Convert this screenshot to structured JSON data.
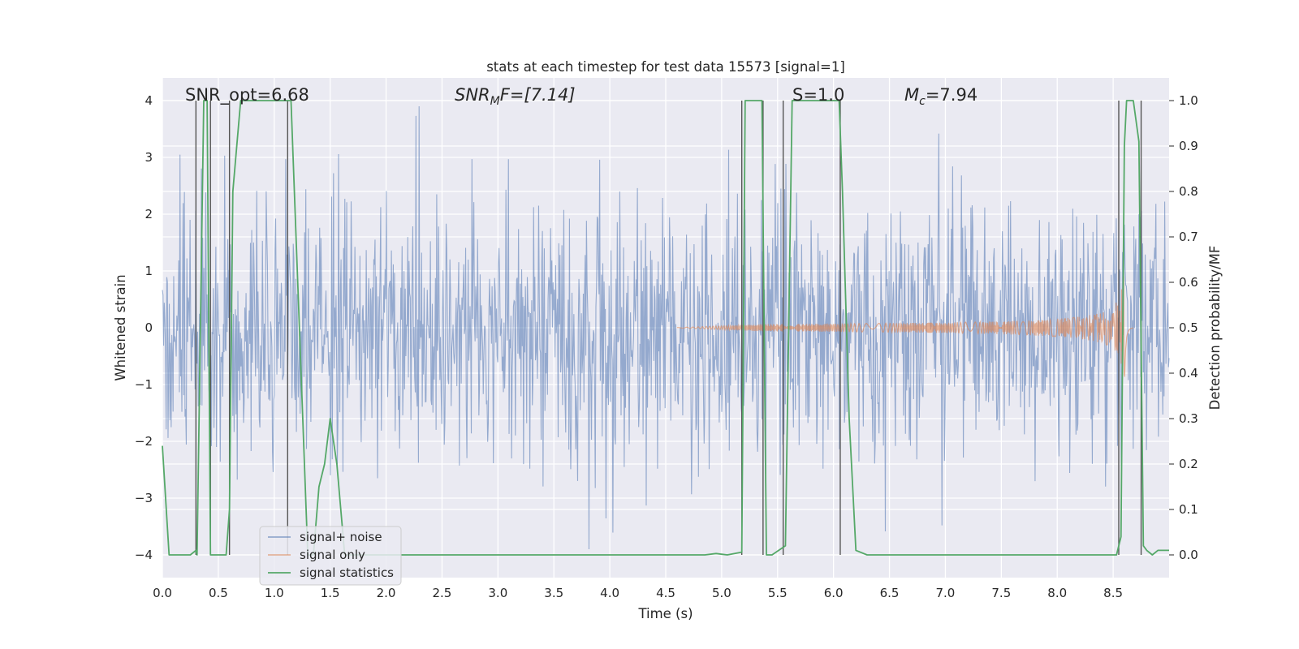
{
  "chart_data": {
    "type": "line",
    "title": "stats at each timestep for test data 15573 [signal=1]",
    "xlabel": "Time (s)",
    "ylabel_left": "Whitened strain",
    "ylabel_right": "Detection probability/MF",
    "xlim": [
      0.0,
      9.0
    ],
    "ylim_left": [
      -4.4,
      4.4
    ],
    "ylim_right": [
      -0.05,
      1.05
    ],
    "xticks": [
      0.0,
      0.5,
      1.0,
      1.5,
      2.0,
      2.5,
      3.0,
      3.5,
      4.0,
      4.5,
      5.0,
      5.5,
      6.0,
      6.5,
      7.0,
      7.5,
      8.0,
      8.5
    ],
    "xtick_labels": [
      "0.0",
      "0.5",
      "1.0",
      "1.5",
      "2.0",
      "2.5",
      "3.0",
      "3.5",
      "4.0",
      "4.5",
      "5.0",
      "5.5",
      "6.0",
      "6.5",
      "7.0",
      "7.5",
      "8.0",
      "8.5"
    ],
    "yticks_left": [
      -4,
      -3,
      -2,
      -1,
      0,
      1,
      2,
      3,
      4
    ],
    "ytick_labels_left": [
      "−4",
      "−3",
      "−2",
      "−1",
      "0",
      "1",
      "2",
      "3",
      "4"
    ],
    "yticks_right": [
      0.0,
      0.1,
      0.2,
      0.3,
      0.4,
      0.5,
      0.6,
      0.7,
      0.8,
      0.9,
      1.0
    ],
    "ytick_labels_right": [
      "0.0",
      "0.1",
      "0.2",
      "0.3",
      "0.4",
      "0.5",
      "0.6",
      "0.7",
      "0.8",
      "0.9",
      "1.0"
    ],
    "annotations": {
      "snr_opt": "SNR_opt=6.68",
      "snr_mf_main": "SNR",
      "snr_mf_sub": "M",
      "snr_mf_rest": "F=[7.14]",
      "s_value": "S=1.0",
      "mc_main": "M",
      "mc_sub": "c",
      "mc_rest": "=7.94"
    },
    "legend": {
      "location": "lower-left",
      "entries": [
        "signal+ noise",
        "signal only",
        "signal statistics"
      ]
    },
    "series": [
      {
        "name": "signal+ noise",
        "axis": "left",
        "color": "#4c72b0",
        "kind": "noise",
        "sigma": 1.15,
        "max_abs": 3.9,
        "seed": 15573
      },
      {
        "name": "signal only",
        "axis": "left",
        "color": "#dd8452",
        "kind": "chirp",
        "start": 4.6,
        "merger": 8.6,
        "end": 8.68,
        "peak_amplitude": 1.05
      },
      {
        "name": "signal statistics",
        "axis": "right",
        "color": "#55a868",
        "kind": "line",
        "x": [
          0.0,
          0.06,
          0.15,
          0.25,
          0.3,
          0.31,
          0.37,
          0.4,
          0.43,
          0.49,
          0.5,
          0.55,
          0.57,
          0.6,
          0.63,
          0.7,
          1.1,
          1.15,
          1.3,
          1.35,
          1.4,
          1.45,
          1.5,
          1.56,
          1.63,
          2.0,
          2.3,
          2.5,
          3.0,
          4.0,
          4.85,
          4.95,
          5.05,
          5.18,
          5.21,
          5.26,
          5.36,
          5.4,
          5.45,
          5.51,
          5.57,
          5.63,
          6.05,
          6.08,
          6.14,
          6.2,
          6.3,
          7.0,
          8.0,
          8.53,
          8.57,
          8.6,
          8.62,
          8.64,
          8.68,
          8.73,
          8.77,
          8.8,
          8.85,
          8.9,
          9.0
        ],
        "y": [
          0.24,
          0.0,
          0.0,
          0.0,
          0.01,
          0.0,
          1.0,
          1.0,
          0.0,
          0.0,
          0.0,
          0.0,
          0.0,
          0.1,
          0.8,
          1.0,
          1.0,
          1.0,
          0.0,
          0.0,
          0.15,
          0.2,
          0.3,
          0.2,
          0.0,
          0.0,
          0.0,
          0.0,
          0.0,
          0.0,
          0.0,
          0.003,
          0.0,
          0.006,
          1.0,
          1.0,
          1.0,
          0.0,
          0.0,
          0.01,
          0.02,
          1.0,
          1.0,
          0.8,
          0.3,
          0.01,
          0.0,
          0.0,
          0.0,
          0.0,
          0.04,
          0.9,
          1.0,
          1.0,
          1.0,
          0.91,
          0.02,
          0.01,
          0.0,
          0.01,
          0.01
        ]
      }
    ],
    "vertical_markers": {
      "color": "#555555",
      "x": [
        0.3,
        0.43,
        0.6,
        1.12,
        5.18,
        5.37,
        5.55,
        6.06,
        8.55,
        8.75
      ]
    }
  }
}
